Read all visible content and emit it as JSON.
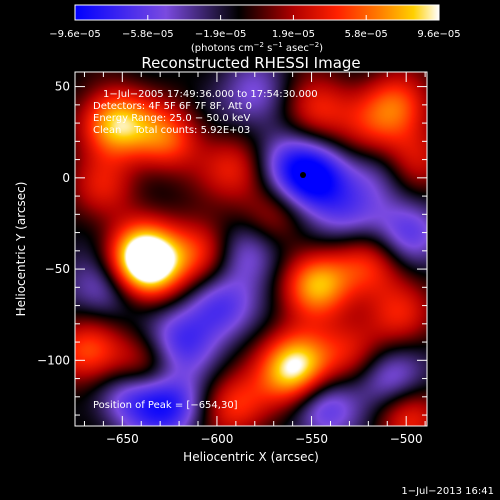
{
  "chart_data": {
    "type": "heatmap",
    "title": "Reconstructed RHESSI Image",
    "xlabel": "Heliocentric X (arcsec)",
    "ylabel": "Heliocentric Y (arcsec)",
    "xlim": [
      -675,
      -489
    ],
    "ylim": [
      -136,
      58
    ],
    "x_ticks": [
      -650,
      -600,
      -550,
      -500
    ],
    "x_tick_labels": [
      "−650",
      "−600",
      "−550",
      "−500"
    ],
    "y_ticks": [
      50,
      0,
      -50,
      -100
    ],
    "y_tick_labels": [
      "50",
      "0",
      "−50",
      "−100"
    ],
    "colorbar": {
      "range": [
        -9.6e-05,
        9.6e-05
      ],
      "tick_labels": [
        "−9.6e−05",
        "−5.8e−05",
        "−1.9e−05",
        "1.9e−05",
        "5.8e−05",
        "9.6e−05"
      ],
      "label_main": "(photons cm",
      "label_sup1": "−2",
      "label_mid1": " s",
      "label_sup2": "−1",
      "label_mid2": " asec",
      "label_sup3": "−2",
      "label_end": ")",
      "colors": [
        "#0000ff",
        "#7a4ae0",
        "#000000",
        "#b00000",
        "#ff2000",
        "#ff8000",
        "#ffd000",
        "#ffffff"
      ]
    },
    "peak": [
      -654,
      30
    ],
    "blobs": [
      {
        "x": -654,
        "y": 30,
        "v": 9.6e-05
      },
      {
        "x": -640,
        "y": -42,
        "v": 9e-05
      },
      {
        "x": -636,
        "y": -50,
        "v": 8e-05
      },
      {
        "x": -547,
        "y": -58,
        "v": 8.5e-05
      },
      {
        "x": -520,
        "y": -48,
        "v": 5e-05
      },
      {
        "x": -608,
        "y": -40,
        "v": 6e-05
      },
      {
        "x": -627,
        "y": 22,
        "v": 6.5e-05
      },
      {
        "x": -590,
        "y": 5,
        "v": 5e-05
      },
      {
        "x": -548,
        "y": 38,
        "v": 5.5e-05
      },
      {
        "x": -505,
        "y": 40,
        "v": 6.5e-05
      },
      {
        "x": -498,
        "y": 10,
        "v": 5e-05
      },
      {
        "x": -520,
        "y": 25,
        "v": 3e-05
      },
      {
        "x": -570,
        "y": -20,
        "v": 3.5e-05
      },
      {
        "x": -660,
        "y": -5,
        "v": 4e-05
      },
      {
        "x": -668,
        "y": -95,
        "v": 6.5e-05
      },
      {
        "x": -640,
        "y": -105,
        "v": 5e-05
      },
      {
        "x": -590,
        "y": -125,
        "v": 5.5e-05
      },
      {
        "x": -557,
        "y": -100,
        "v": 7e-05
      },
      {
        "x": -560,
        "y": -110,
        "v": 6e-05
      },
      {
        "x": -530,
        "y": -95,
        "v": 4e-05
      },
      {
        "x": -505,
        "y": -75,
        "v": 4.5e-05
      },
      {
        "x": -500,
        "y": -130,
        "v": 5e-05
      },
      {
        "x": -550,
        "y": 0,
        "v": -9.6e-05
      },
      {
        "x": -625,
        "y": -125,
        "v": -6.5e-05
      },
      {
        "x": -645,
        "y": -118,
        "v": -6e-05
      },
      {
        "x": -600,
        "y": -70,
        "v": -5.5e-05
      },
      {
        "x": -585,
        "y": -40,
        "v": -5e-05
      },
      {
        "x": -545,
        "y": -125,
        "v": -6e-05
      },
      {
        "x": -510,
        "y": -110,
        "v": -5e-05
      },
      {
        "x": -500,
        "y": -30,
        "v": -4.5e-05
      },
      {
        "x": -580,
        "y": 45,
        "v": -4e-05
      },
      {
        "x": -565,
        "y": 10,
        "v": -3.5e-05
      },
      {
        "x": -660,
        "y": -60,
        "v": -4.5e-05
      },
      {
        "x": -620,
        "y": -90,
        "v": -5.5e-05
      },
      {
        "x": -530,
        "y": -20,
        "v": -4e-05
      },
      {
        "x": -510,
        "y": 5,
        "v": -3.5e-05
      }
    ],
    "annotations": {
      "time": "1−Jul−2005 17:49:36.000 to 17:54:30.000",
      "detectors": "Detectors: 4F 5F 6F 7F 8F, Att 0",
      "energy": "Energy Range: 25.0 − 50.0 keV",
      "counts": "Clean    Total counts: 5.92E+03",
      "peak_text": "Position of Peak = [−654,30]",
      "timestamp": "1−Jul−2013 16:41"
    }
  }
}
